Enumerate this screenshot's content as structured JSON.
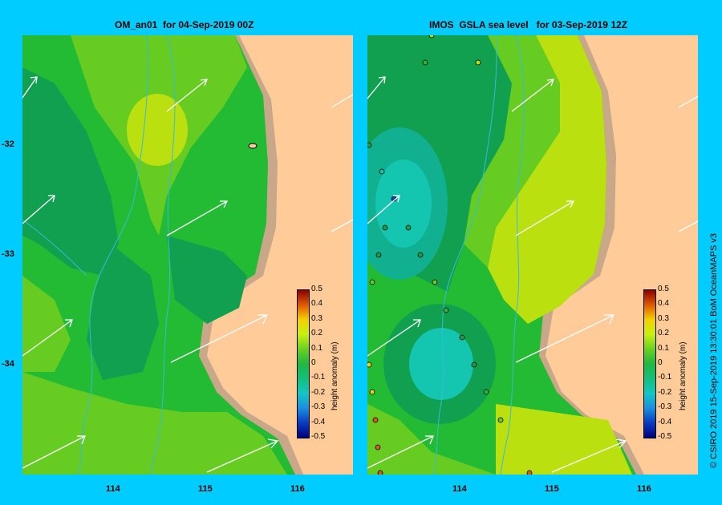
{
  "left_panel": {
    "title": "OM_an01  for 04-Sep-2019 00Z"
  },
  "right_panel": {
    "title": "IMOS  GSLA sea level   for 03-Sep-2019 12Z"
  },
  "axes": {
    "lon_ticks": [
      "114",
      "115",
      "116"
    ],
    "lat_ticks": [
      "-32",
      "-33",
      "-34"
    ]
  },
  "colorbar": {
    "label": "height anomaly  (m)",
    "ticks": [
      "0.5",
      "0.4",
      "0.3",
      "0.2",
      "0.1",
      "0",
      "-0.1",
      "-0.2",
      "-0.3",
      "-0.4",
      "-0.5"
    ]
  },
  "credit": "© CSIRO 2019   15-Sep-2019 13:30:01  BoM OceanMAPS v3",
  "colors": {
    "background": "#00ccff",
    "land": "#ffcc99",
    "shelf": "#c8a888",
    "field_green": "#22bb33",
    "field_dark_green": "#11a050",
    "field_light_green": "#66cc22",
    "field_yellow_green": "#bbe010",
    "field_teal": "#11b090"
  }
}
